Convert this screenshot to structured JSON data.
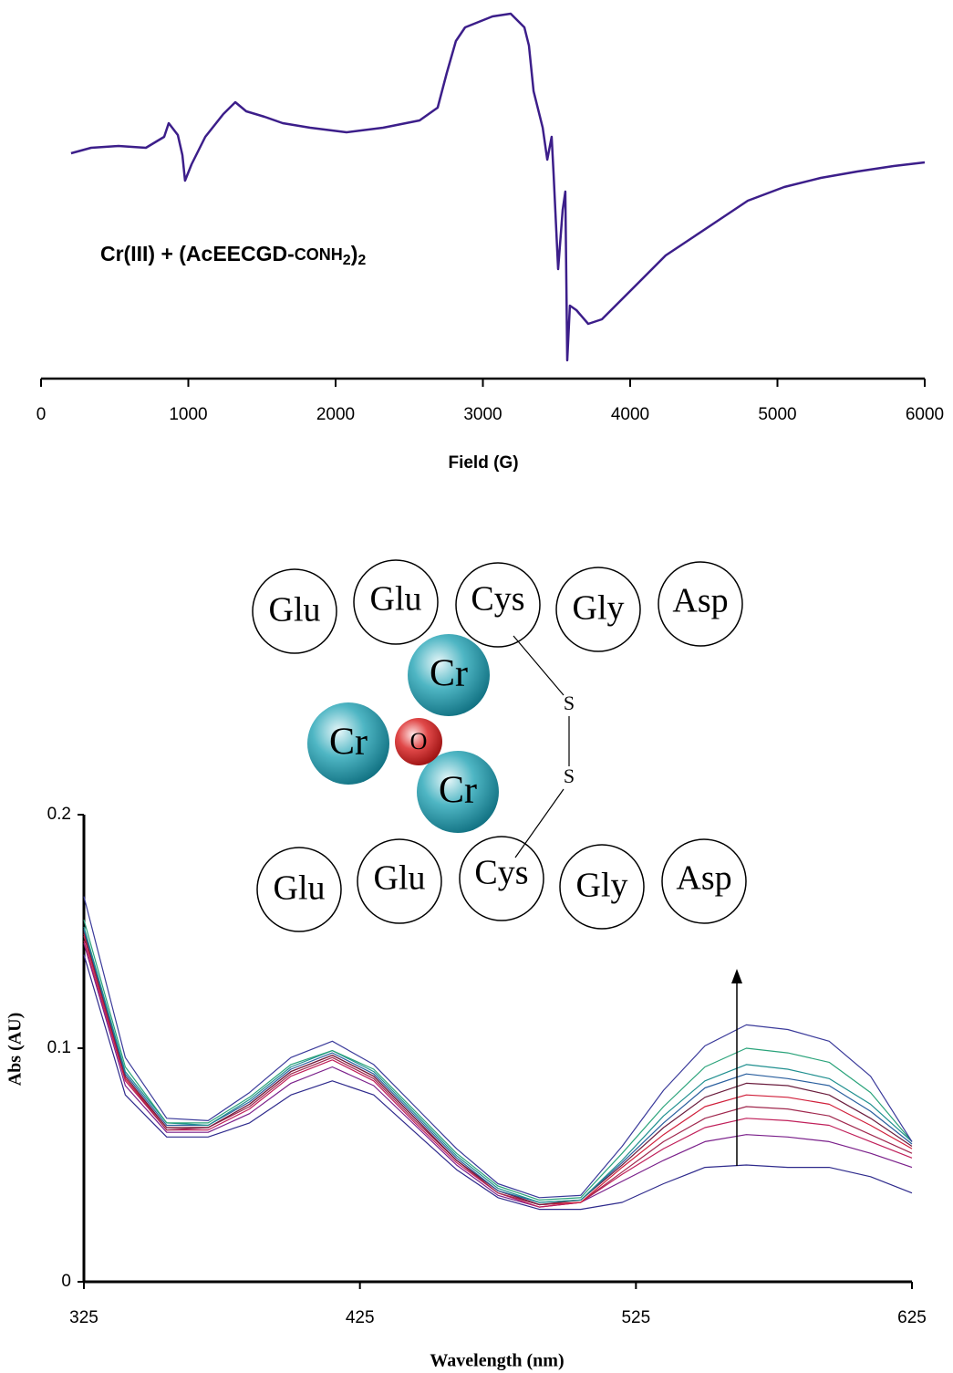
{
  "chart_data": [
    {
      "type": "line",
      "annotation": [
        "Cr(III) + (AcEECGD-",
        "CONH",
        "2",
        ")",
        "2"
      ],
      "x_label": "Field (G)",
      "xlim": [
        0,
        6000
      ],
      "xticks": [
        0,
        1000,
        2000,
        3000,
        4000,
        5000,
        6000
      ],
      "color": "#3c1e8a",
      "x": [
        204,
        340,
        526,
        712,
        836,
        867,
        929,
        960,
        978,
        1022,
        1115,
        1238,
        1319,
        1393,
        1517,
        1641,
        1827,
        2074,
        2322,
        2570,
        2693,
        2755,
        2817,
        2879,
        3065,
        3189,
        3282,
        3313,
        3344,
        3406,
        3437,
        3467,
        3480,
        3511,
        3542,
        3560,
        3573,
        3591,
        3635,
        3715,
        3808,
        3932,
        4056,
        4241,
        4427,
        4613,
        4799,
        5046,
        5294,
        5542,
        5789,
        6000
      ],
      "values": [
        1.12,
        1.18,
        1.2,
        1.18,
        1.3,
        1.45,
        1.32,
        1.1,
        0.82,
        1.0,
        1.3,
        1.55,
        1.68,
        1.58,
        1.52,
        1.45,
        1.4,
        1.35,
        1.4,
        1.48,
        1.62,
        2.0,
        2.35,
        2.5,
        2.62,
        2.65,
        2.5,
        2.3,
        1.8,
        1.4,
        1.05,
        1.3,
        0.9,
        -0.15,
        0.5,
        0.7,
        -1.15,
        -0.55,
        -0.6,
        -0.75,
        -0.7,
        -0.5,
        -0.3,
        0,
        0.2,
        0.4,
        0.6,
        0.75,
        0.85,
        0.92,
        0.98,
        1.02
      ]
    },
    {
      "type": "line",
      "x_label": "Wavelength (nm)",
      "y_label": "Abs (AU)",
      "xlim": [
        325,
        625
      ],
      "xticks": [
        325,
        425,
        525,
        625
      ],
      "ylim": [
        0,
        0.2
      ],
      "yticks": [
        0,
        0.1,
        0.2
      ],
      "x": [
        325,
        340,
        355,
        370,
        385,
        400,
        415,
        430,
        445,
        460,
        475,
        490,
        505,
        520,
        535,
        550,
        565,
        580,
        595,
        610,
        625
      ],
      "series": [
        {
          "color": "#2e2a8c",
          "values": [
            0.14,
            0.08,
            0.062,
            0.062,
            0.068,
            0.08,
            0.086,
            0.08,
            0.064,
            0.048,
            0.036,
            0.031,
            0.031,
            0.034,
            0.042,
            0.049,
            0.05,
            0.049,
            0.049,
            0.045,
            0.038
          ]
        },
        {
          "color": "#7a1f8a",
          "values": [
            0.145,
            0.084,
            0.064,
            0.064,
            0.072,
            0.085,
            0.092,
            0.084,
            0.067,
            0.05,
            0.037,
            0.032,
            0.034,
            0.043,
            0.052,
            0.06,
            0.063,
            0.062,
            0.06,
            0.055,
            0.049
          ]
        },
        {
          "color": "#c0205a",
          "values": [
            0.146,
            0.086,
            0.065,
            0.065,
            0.074,
            0.088,
            0.095,
            0.086,
            0.068,
            0.051,
            0.038,
            0.032,
            0.034,
            0.046,
            0.057,
            0.066,
            0.07,
            0.069,
            0.067,
            0.06,
            0.053
          ]
        },
        {
          "color": "#a0284e",
          "values": [
            0.148,
            0.087,
            0.065,
            0.066,
            0.075,
            0.089,
            0.096,
            0.087,
            0.069,
            0.052,
            0.038,
            0.033,
            0.034,
            0.047,
            0.06,
            0.07,
            0.075,
            0.074,
            0.071,
            0.063,
            0.055
          ]
        },
        {
          "color": "#d01f3a",
          "values": [
            0.149,
            0.087,
            0.066,
            0.066,
            0.076,
            0.09,
            0.097,
            0.088,
            0.07,
            0.052,
            0.039,
            0.033,
            0.034,
            0.049,
            0.063,
            0.075,
            0.08,
            0.079,
            0.076,
            0.067,
            0.057
          ]
        },
        {
          "color": "#6b1e3e",
          "values": [
            0.15,
            0.088,
            0.066,
            0.066,
            0.076,
            0.09,
            0.097,
            0.088,
            0.07,
            0.052,
            0.039,
            0.033,
            0.035,
            0.05,
            0.066,
            0.079,
            0.085,
            0.084,
            0.08,
            0.07,
            0.058
          ]
        },
        {
          "color": "#2a5f9e",
          "values": [
            0.151,
            0.089,
            0.067,
            0.067,
            0.077,
            0.091,
            0.098,
            0.089,
            0.071,
            0.053,
            0.039,
            0.034,
            0.035,
            0.051,
            0.068,
            0.083,
            0.089,
            0.087,
            0.084,
            0.073,
            0.059
          ]
        },
        {
          "color": "#1f8f8f",
          "values": [
            0.152,
            0.09,
            0.068,
            0.067,
            0.078,
            0.092,
            0.099,
            0.09,
            0.072,
            0.054,
            0.04,
            0.034,
            0.035,
            0.052,
            0.071,
            0.086,
            0.093,
            0.091,
            0.087,
            0.076,
            0.06
          ]
        },
        {
          "color": "#2aa37a",
          "values": [
            0.155,
            0.092,
            0.068,
            0.068,
            0.079,
            0.093,
            0.099,
            0.091,
            0.073,
            0.055,
            0.041,
            0.035,
            0.036,
            0.055,
            0.075,
            0.092,
            0.1,
            0.098,
            0.094,
            0.081,
            0.06
          ]
        },
        {
          "color": "#3a3a9a",
          "values": [
            0.165,
            0.096,
            0.07,
            0.069,
            0.081,
            0.096,
            0.103,
            0.093,
            0.075,
            0.057,
            0.042,
            0.036,
            0.037,
            0.058,
            0.082,
            0.101,
            0.11,
            0.108,
            0.103,
            0.088,
            0.06
          ]
        }
      ]
    }
  ],
  "diagram": {
    "top_row": [
      "Glu",
      "Glu",
      "Cys",
      "Gly",
      "Asp"
    ],
    "bottom_row": [
      "Glu",
      "Glu",
      "Cys",
      "Gly",
      "Asp"
    ],
    "metals": [
      "Cr",
      "Cr",
      "Cr"
    ],
    "oxo": "O",
    "sulfurs": [
      "S",
      "S"
    ]
  }
}
